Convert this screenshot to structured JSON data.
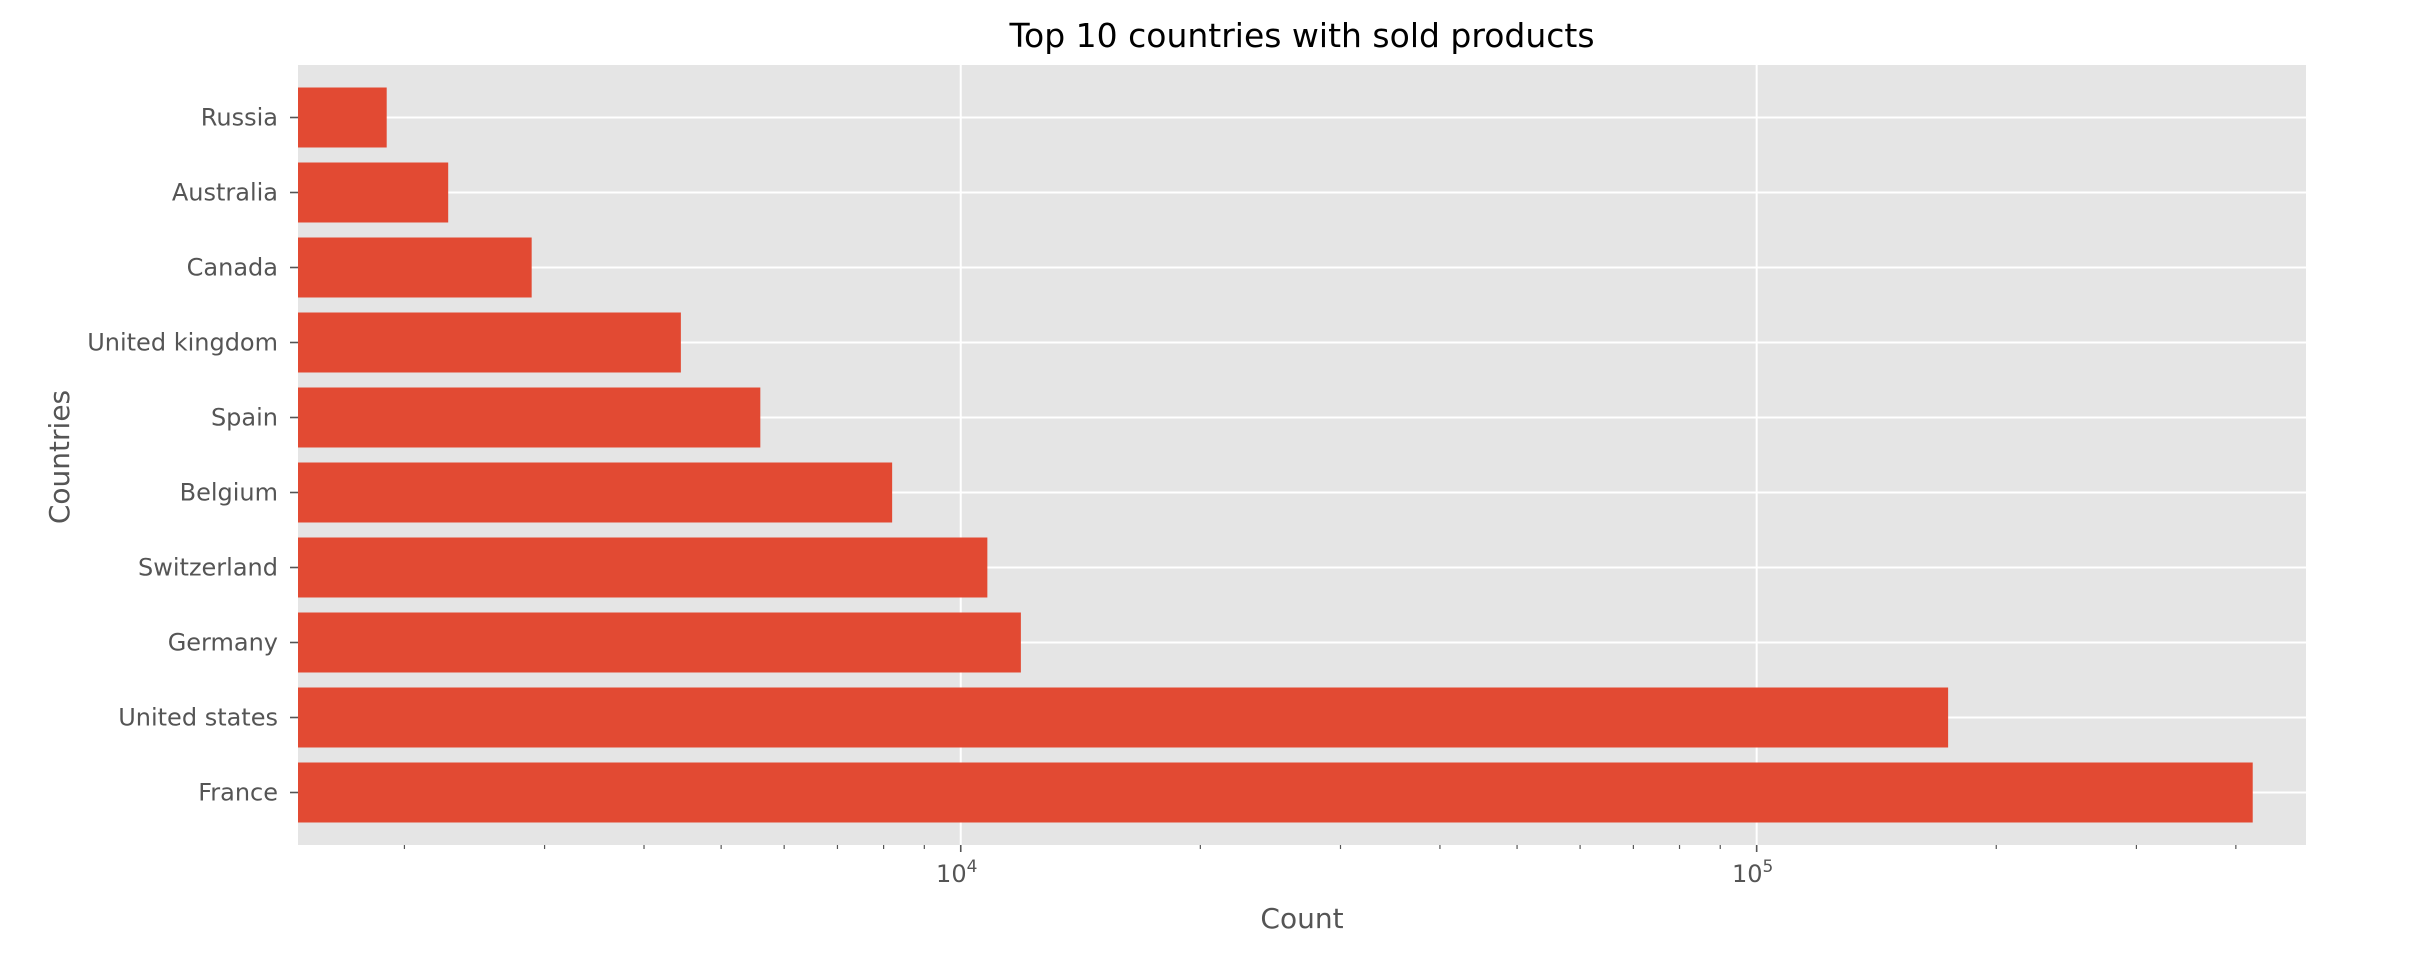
{
  "chart_data": {
    "type": "bar",
    "orientation": "horizontal",
    "title": "Top 10 countries with sold products",
    "xlabel": "Count",
    "ylabel": "Countries",
    "xscale": "log",
    "xlim": [
      1470,
      490000
    ],
    "categories": [
      "Russia",
      "Australia",
      "Canada",
      "United kingdom",
      "Spain",
      "Belgium",
      "Switzerland",
      "Germany",
      "United states",
      "France"
    ],
    "values": [
      1900,
      2270,
      2890,
      4450,
      5600,
      8200,
      10800,
      11900,
      174000,
      420000
    ],
    "x_tick_labels": [
      {
        "base": "10",
        "exp": "4",
        "value": 10000
      },
      {
        "base": "10",
        "exp": "5",
        "value": 100000
      }
    ],
    "grid": true,
    "legend": "none",
    "colors": {
      "bar": "#E24A33",
      "axes_bg": "#E5E5E5",
      "grid": "#FFFFFF",
      "tick_text": "#555555",
      "title_text": "#000000",
      "minor_tick": "#555555"
    }
  }
}
